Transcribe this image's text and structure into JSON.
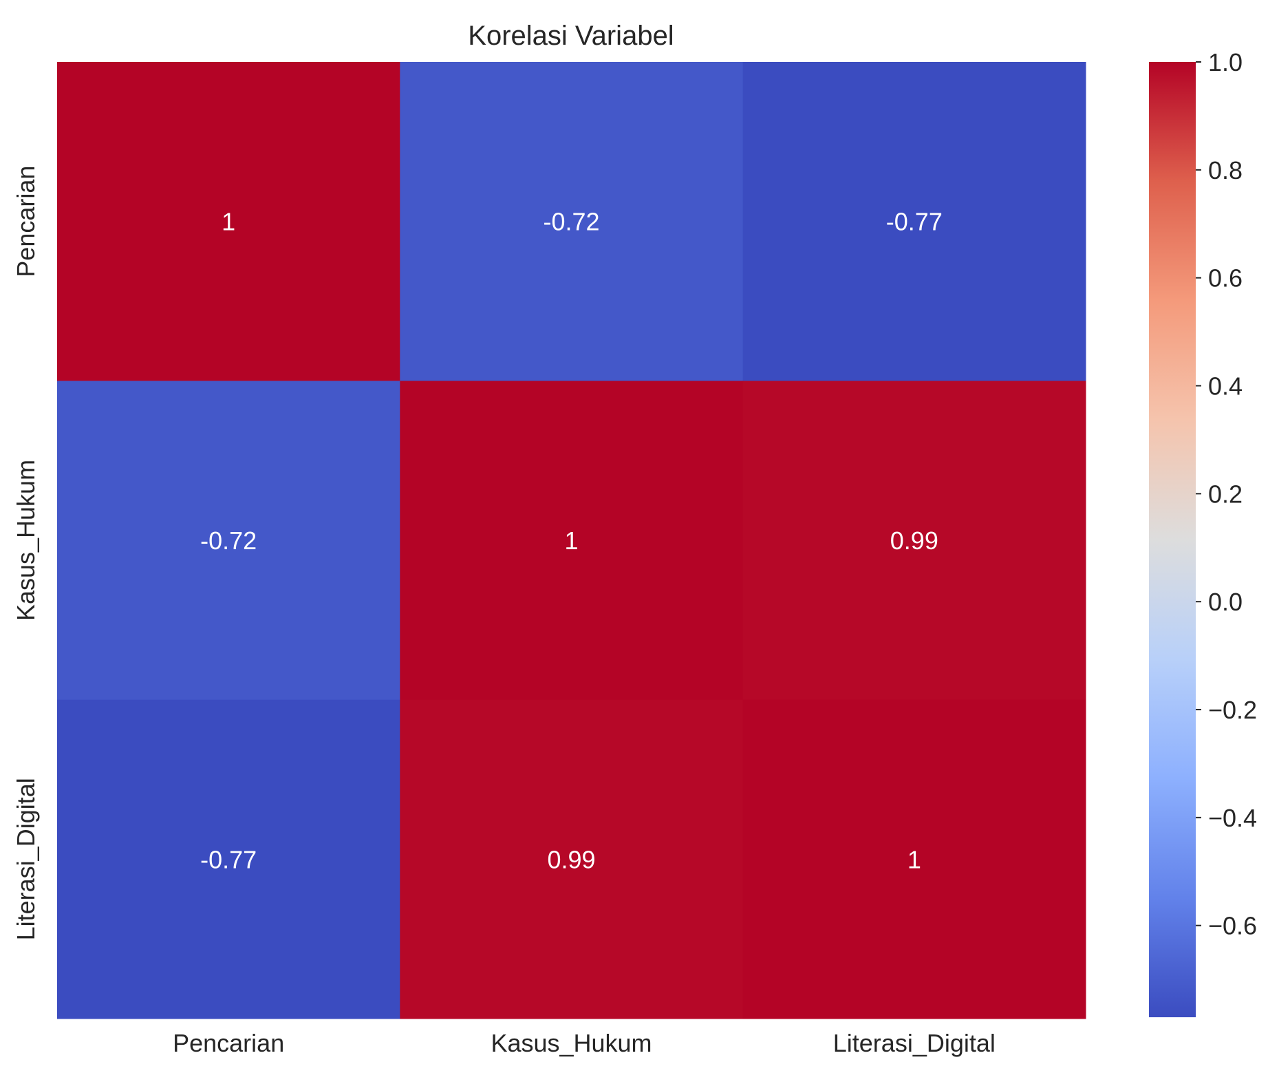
{
  "chart_data": {
    "type": "heatmap",
    "title": "Korelasi Variabel",
    "xlabel": "",
    "ylabel": "",
    "x_categories": [
      "Pencarian",
      "Kasus_Hukum",
      "Literasi_Digital"
    ],
    "y_categories": [
      "Pencarian",
      "Kasus_Hukum",
      "Literasi_Digital"
    ],
    "values": [
      [
        1.0,
        -0.72,
        -0.77
      ],
      [
        -0.72,
        1.0,
        0.99
      ],
      [
        -0.77,
        0.99,
        1.0
      ]
    ],
    "annotations": [
      [
        "1",
        "-0.72",
        "-0.77"
      ],
      [
        "-0.72",
        "1",
        "0.99"
      ],
      [
        "-0.77",
        "0.99",
        "1"
      ]
    ],
    "colormap": "coolwarm",
    "color_range": [
      -0.77,
      1.0
    ],
    "colorbar": {
      "ticks": [
        1.0,
        0.8,
        0.6,
        0.4,
        0.2,
        0.0,
        -0.2,
        -0.4,
        -0.6
      ],
      "tick_labels": [
        "1.0",
        "0.8",
        "0.6",
        "0.4",
        "0.2",
        "0.0",
        "−0.2",
        "−0.4",
        "−0.6"
      ]
    },
    "grid": false,
    "annotation_color": "#ffffff",
    "text_color": "#262626"
  }
}
